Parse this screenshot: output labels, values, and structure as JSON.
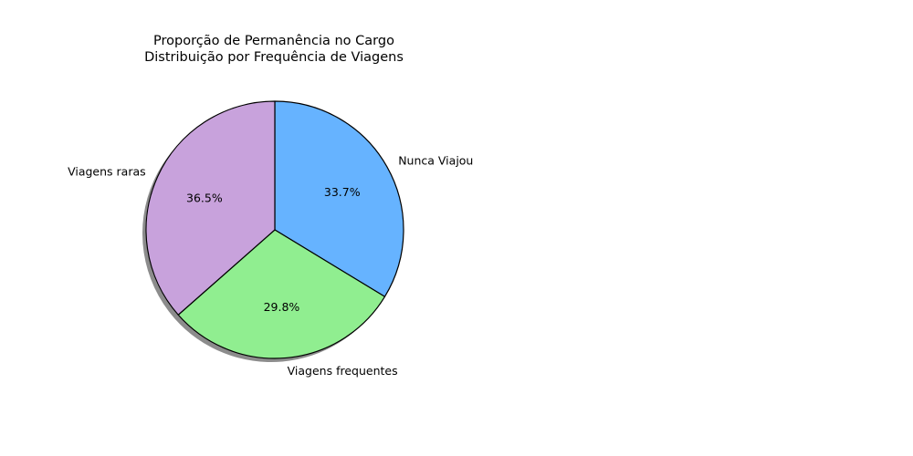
{
  "chart_data": {
    "type": "pie",
    "title": "Proporção de Permanência no Cargo\nDistribuição por Frequência de Viagens",
    "title_lines": [
      "Proporção de Permanência no Cargo",
      "Distribuição por Frequência de Viagens"
    ],
    "start_angle_deg": 90,
    "direction": "clockwise",
    "shadow": true,
    "edge_color": "#000000",
    "slices": [
      {
        "label": "Nunca Viajou",
        "value": 33.7,
        "pct_label": "33.7%",
        "color": "#66b3ff"
      },
      {
        "label": "Viagens frequentes",
        "value": 29.8,
        "pct_label": "29.8%",
        "color": "#90ee90"
      },
      {
        "label": "Viagens raras",
        "value": 36.5,
        "pct_label": "36.5%",
        "color": "#c8a2dc"
      }
    ]
  }
}
